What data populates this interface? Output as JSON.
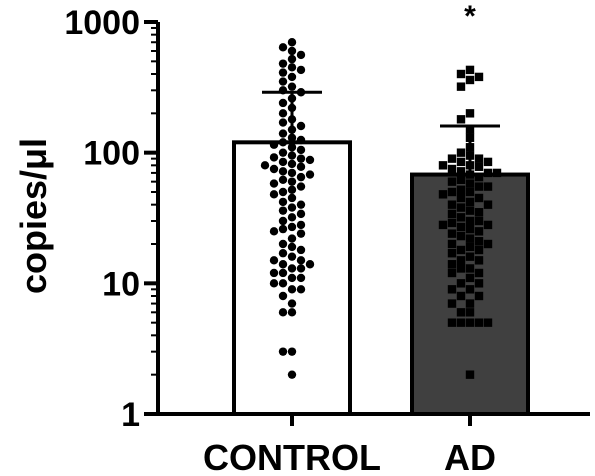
{
  "chart_data": {
    "type": "bar",
    "scale": "log",
    "ylabel": "copies/μl",
    "ylim": [
      1,
      1000
    ],
    "yticks": [
      "1",
      "10",
      "100",
      "1000"
    ],
    "categories": [
      "CONTROL",
      "AD"
    ],
    "values": [
      120,
      68
    ],
    "error_upper": [
      290,
      160
    ],
    "significance": [
      "",
      "*"
    ],
    "colors": {
      "control_fill": "#ffffff",
      "ad_fill": "#404040",
      "points": "#000000"
    },
    "series": [
      {
        "category": "CONTROL",
        "marker": "circle",
        "points": [
          700,
          640,
          600,
          560,
          520,
          480,
          450,
          430,
          410,
          380,
          350,
          320,
          300,
          290,
          260,
          240,
          220,
          200,
          180,
          170,
          160,
          150,
          140,
          130,
          125,
          120,
          115,
          110,
          105,
          100,
          95,
          92,
          90,
          88,
          85,
          82,
          80,
          78,
          75,
          72,
          70,
          68,
          65,
          62,
          60,
          58,
          55,
          52,
          50,
          48,
          45,
          42,
          40,
          38,
          36,
          34,
          32,
          30,
          28,
          27,
          26,
          25,
          24,
          22,
          20,
          19,
          18,
          17,
          16,
          15,
          15,
          14,
          14,
          13,
          13,
          12,
          12,
          11,
          11,
          10,
          10,
          9,
          9,
          8,
          7,
          6,
          6,
          3,
          3,
          2
        ]
      },
      {
        "category": "AD",
        "marker": "square",
        "points": [
          430,
          400,
          380,
          360,
          320,
          200,
          180,
          150,
          130,
          110,
          100,
          95,
          90,
          90,
          85,
          85,
          80,
          80,
          78,
          75,
          72,
          70,
          70,
          68,
          65,
          62,
          60,
          58,
          55,
          55,
          52,
          50,
          50,
          48,
          45,
          45,
          42,
          40,
          40,
          38,
          36,
          35,
          34,
          32,
          30,
          30,
          29,
          28,
          28,
          27,
          26,
          25,
          24,
          23,
          22,
          21,
          20,
          20,
          19,
          18,
          18,
          17,
          16,
          15,
          15,
          14,
          13,
          13,
          12,
          12,
          11,
          10,
          10,
          9,
          9,
          8,
          8,
          7,
          7,
          6,
          6,
          5,
          5,
          5,
          5,
          5,
          2
        ]
      }
    ]
  }
}
